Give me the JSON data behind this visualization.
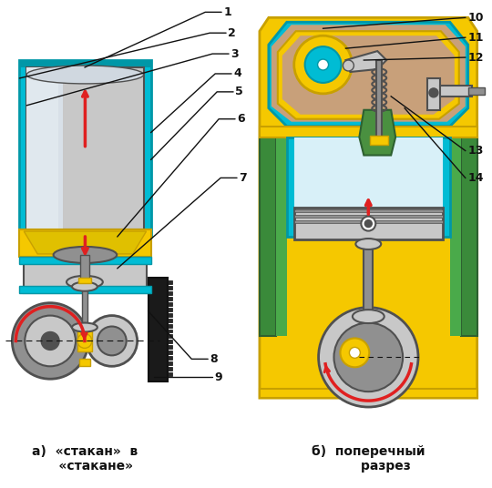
{
  "bg_color": "#ffffff",
  "label_a": "а)  «стакан»  в\n     «стакане»",
  "label_b": "б)  поперечный\n        разрез",
  "cyan": "#00bcd4",
  "cyan_dark": "#0097a7",
  "yellow": "#f5c800",
  "yellow_dark": "#c8a000",
  "gray_light": "#c8c8c8",
  "gray_mid": "#909090",
  "gray_dark": "#505050",
  "brown": "#c8a07a",
  "green": "#4a9040",
  "green_dark": "#2d6030",
  "black": "#111111",
  "red": "#e02020",
  "white": "#ffffff",
  "blue_gray": "#7090b0",
  "figsize": [
    5.4,
    5.36
  ],
  "dpi": 100
}
